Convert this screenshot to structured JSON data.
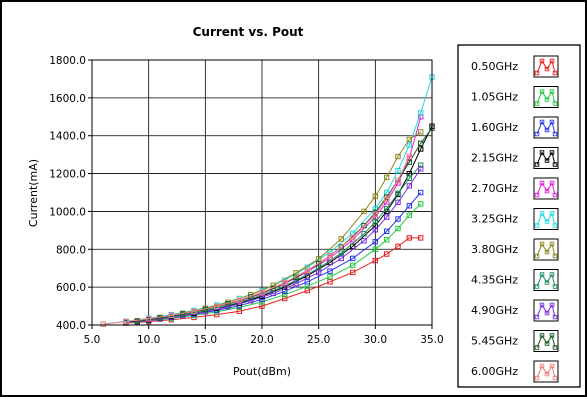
{
  "chart_data": {
    "type": "line",
    "title": "Current vs. Pout",
    "xlabel": "Pout(dBm)",
    "ylabel": "Current(mA)",
    "xlim": [
      5.0,
      35.0
    ],
    "ylim": [
      400.0,
      1800.0
    ],
    "xticks": [
      "5.0",
      "10.0",
      "15.0",
      "20.0",
      "25.0",
      "30.0",
      "35.0"
    ],
    "yticks": [
      "400.0",
      "600.0",
      "800.0",
      "1000.0",
      "1200.0",
      "1400.0",
      "1600.0",
      "1800.0"
    ],
    "grid": true,
    "legend_position": "right",
    "marker": "square",
    "series": [
      {
        "name": "0.50GHz",
        "color": "#e82020",
        "x": [
          8,
          10,
          12,
          14,
          16,
          18,
          20,
          22,
          24,
          26,
          28,
          30,
          31,
          32,
          33,
          34
        ],
        "y": [
          410,
          418,
          428,
          440,
          455,
          473,
          500,
          540,
          582,
          628,
          678,
          740,
          775,
          815,
          860,
          860
        ]
      },
      {
        "name": "1.05GHz",
        "color": "#22cc44",
        "x": [
          8,
          10,
          12,
          14,
          16,
          18,
          20,
          22,
          24,
          26,
          28,
          30,
          31,
          32,
          33,
          34
        ],
        "y": [
          412,
          422,
          435,
          450,
          470,
          493,
          522,
          560,
          605,
          655,
          715,
          800,
          850,
          910,
          980,
          1040
        ]
      },
      {
        "name": "1.60GHz",
        "color": "#2a3ae8",
        "x": [
          8,
          10,
          12,
          14,
          16,
          18,
          20,
          22,
          24,
          26,
          28,
          30,
          31,
          32,
          33,
          34
        ],
        "y": [
          414,
          425,
          440,
          456,
          477,
          502,
          535,
          578,
          628,
          685,
          752,
          840,
          895,
          960,
          1030,
          1100
        ]
      },
      {
        "name": "2.15GHz",
        "color": "#000000",
        "x": [
          8,
          10,
          12,
          14,
          16,
          18,
          20,
          22,
          24,
          26,
          28,
          30,
          31,
          32,
          33,
          34,
          35
        ],
        "y": [
          416,
          428,
          445,
          463,
          487,
          515,
          552,
          600,
          660,
          730,
          815,
          925,
          1000,
          1090,
          1200,
          1330,
          1450
        ]
      },
      {
        "name": "2.70GHz",
        "color": "#e020e0",
        "x": [
          8,
          10,
          12,
          14,
          16,
          18,
          20,
          22,
          24,
          26,
          28,
          30,
          31,
          32,
          33,
          34
        ],
        "y": [
          418,
          432,
          450,
          470,
          496,
          527,
          566,
          618,
          680,
          755,
          850,
          970,
          1050,
          1150,
          1280,
          1500
        ]
      },
      {
        "name": "3.25GHz",
        "color": "#22d8e0",
        "x": [
          6,
          8,
          10,
          12,
          14,
          16,
          18,
          20,
          22,
          24,
          26,
          28,
          30,
          31,
          32,
          33,
          34,
          35
        ],
        "y": [
          405,
          420,
          436,
          455,
          477,
          505,
          540,
          582,
          637,
          705,
          785,
          885,
          1015,
          1100,
          1215,
          1350,
          1520,
          1710
        ]
      },
      {
        "name": "3.80GHz",
        "color": "#8c8a20",
        "x": [
          9,
          11,
          13,
          15,
          17,
          19,
          21,
          23,
          25,
          27,
          29,
          30,
          31,
          32,
          33,
          34
        ],
        "y": [
          422,
          440,
          462,
          488,
          520,
          560,
          610,
          675,
          750,
          855,
          1000,
          1080,
          1180,
          1290,
          1380,
          1420
        ]
      },
      {
        "name": "4.35GHz",
        "color": "#1f8f5e",
        "x": [
          9,
          11,
          13,
          15,
          17,
          19,
          21,
          23,
          25,
          27,
          29,
          30,
          31,
          32,
          33,
          34
        ],
        "y": [
          418,
          434,
          453,
          476,
          504,
          538,
          580,
          635,
          700,
          780,
          882,
          945,
          1015,
          1095,
          1175,
          1245
        ]
      },
      {
        "name": "4.90GHz",
        "color": "#7a30e0",
        "x": [
          9,
          11,
          13,
          15,
          17,
          19,
          21,
          23,
          25,
          27,
          29,
          30,
          31,
          32,
          33,
          34
        ],
        "y": [
          416,
          431,
          449,
          470,
          496,
          528,
          567,
          618,
          678,
          752,
          845,
          903,
          970,
          1048,
          1135,
          1225
        ]
      },
      {
        "name": "5.45GHz",
        "color": "#1c5a22",
        "x": [
          9,
          11,
          13,
          15,
          17,
          19,
          21,
          23,
          25,
          27,
          29,
          30,
          31,
          32,
          33,
          34,
          35
        ],
        "y": [
          420,
          437,
          458,
          482,
          512,
          548,
          593,
          652,
          724,
          812,
          925,
          995,
          1075,
          1165,
          1260,
          1360,
          1440
        ]
      },
      {
        "name": "6.00GHz",
        "color": "#f08080",
        "x": [
          6,
          8,
          10,
          12,
          14,
          16,
          18,
          20,
          22,
          24,
          26,
          28,
          30,
          31,
          32,
          33
        ],
        "y": [
          404,
          418,
          433,
          451,
          472,
          499,
          531,
          572,
          624,
          688,
          766,
          862,
          985,
          1065,
          1165,
          1290
        ]
      }
    ]
  }
}
